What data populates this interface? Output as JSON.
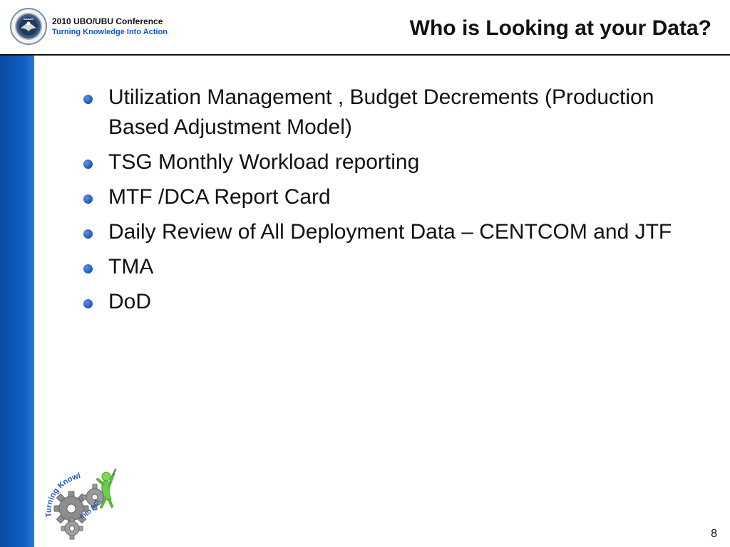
{
  "header": {
    "conference_name": "2010 UBO/UBU Conference",
    "conference_tagline": "Turning Knowledge Into Action",
    "seal_icon": "department-of-defense-seal-icon"
  },
  "slide": {
    "title": "Who is Looking at your Data?",
    "bullets": [
      {
        "text": "Utilization Management , Budget Decrements (Production Based Adjustment Model)"
      },
      {
        "text": "TSG Monthly Workload reporting"
      },
      {
        "text": "MTF /DCA Report Card"
      },
      {
        "text": "Daily Review of All Deployment Data – CENTCOM and JTF"
      },
      {
        "text": "TMA"
      },
      {
        "text": "DoD"
      }
    ]
  },
  "footer": {
    "logo_icon": "turning-knowledge-into-action-gears-icon",
    "logo_text_1": "Turning Knowledge",
    "logo_text_2": "Into Action",
    "page_number": "8"
  },
  "colors": {
    "side_bar": "#0f5fc2",
    "accent": "#0b58c8",
    "text": "#111111",
    "background": "#ffffff"
  }
}
